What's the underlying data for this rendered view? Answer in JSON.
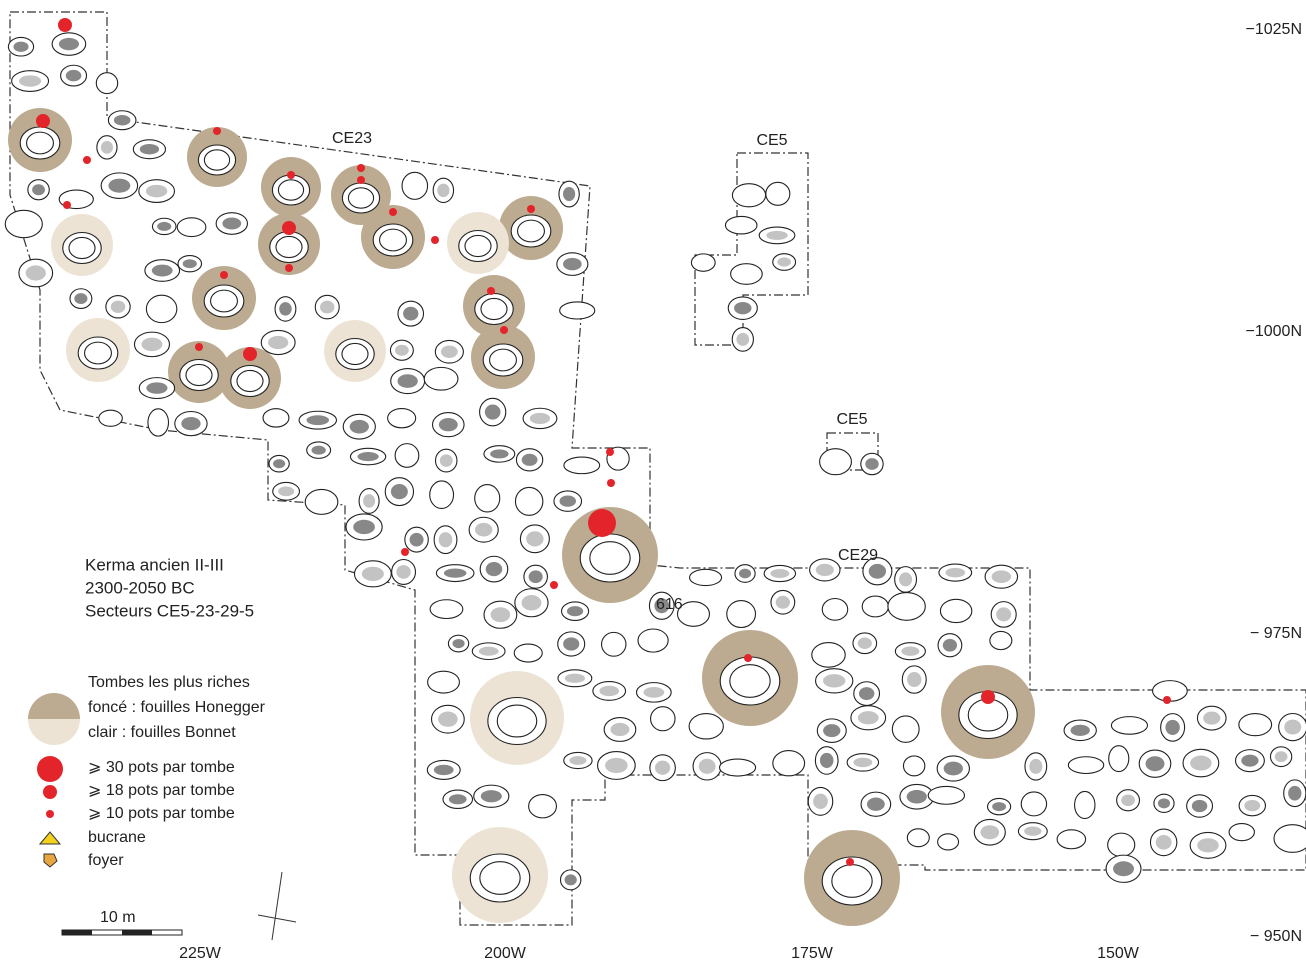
{
  "grid_labels": {
    "north": [
      "−1025N",
      "−1000N",
      "− 975N",
      "− 950N"
    ],
    "west": [
      "225W",
      "200W",
      "175W",
      "150W"
    ]
  },
  "sector_labels": [
    "CE23",
    "CE5",
    "CE5",
    "CE29"
  ],
  "tomb_label": "616",
  "legend": {
    "title": [
      "Kerma ancien II-III",
      "2300-2050 BC",
      "Secteurs CE5-23-29-5"
    ],
    "rich_heading": "Tombes les plus riches",
    "dark": "foncé : fouilles Honegger",
    "light": "clair : fouilles Bonnet",
    "items": [
      "⩾ 30 pots par tombe",
      "⩾ 18 pots par tombe",
      "⩾ 10 pots par tombe",
      "bucrane",
      "foyer"
    ]
  },
  "scale": "10 m"
}
